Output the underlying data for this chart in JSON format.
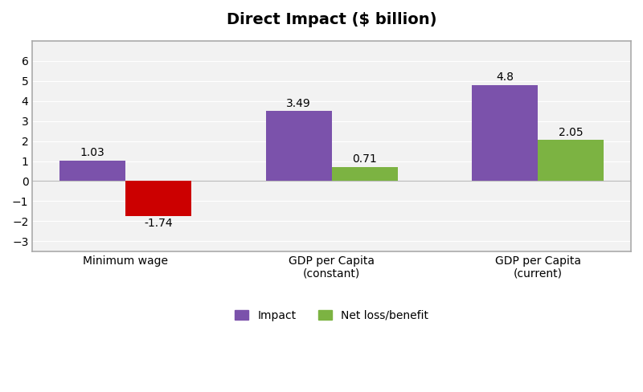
{
  "title": "Direct Impact ($ billion)",
  "categories": [
    "Minimum wage",
    "GDP per Capita\n(constant)",
    "GDP per Capita\n(current)"
  ],
  "impact_values": [
    1.03,
    3.49,
    4.8
  ],
  "net_values": [
    -1.74,
    0.71,
    2.05
  ],
  "impact_colors": [
    "#7B52AB",
    "#7B52AB",
    "#7B52AB"
  ],
  "net_colors": [
    "#CC0000",
    "#7CB342",
    "#7CB342"
  ],
  "impact_label": "Impact",
  "net_label": "Net loss/benefit",
  "legend_impact_color": "#7B52AB",
  "legend_net_color": "#7CB342",
  "ylim": [
    -3.5,
    7
  ],
  "yticks": [
    -3,
    -2,
    -1,
    0,
    1,
    2,
    3,
    4,
    5,
    6
  ],
  "bar_width": 0.32,
  "title_fontsize": 14,
  "label_fontsize": 10,
  "annotation_fontsize": 10,
  "background_color": "#FFFFFF",
  "plot_background_color": "#F2F2F2",
  "border_color": "#AAAAAA"
}
